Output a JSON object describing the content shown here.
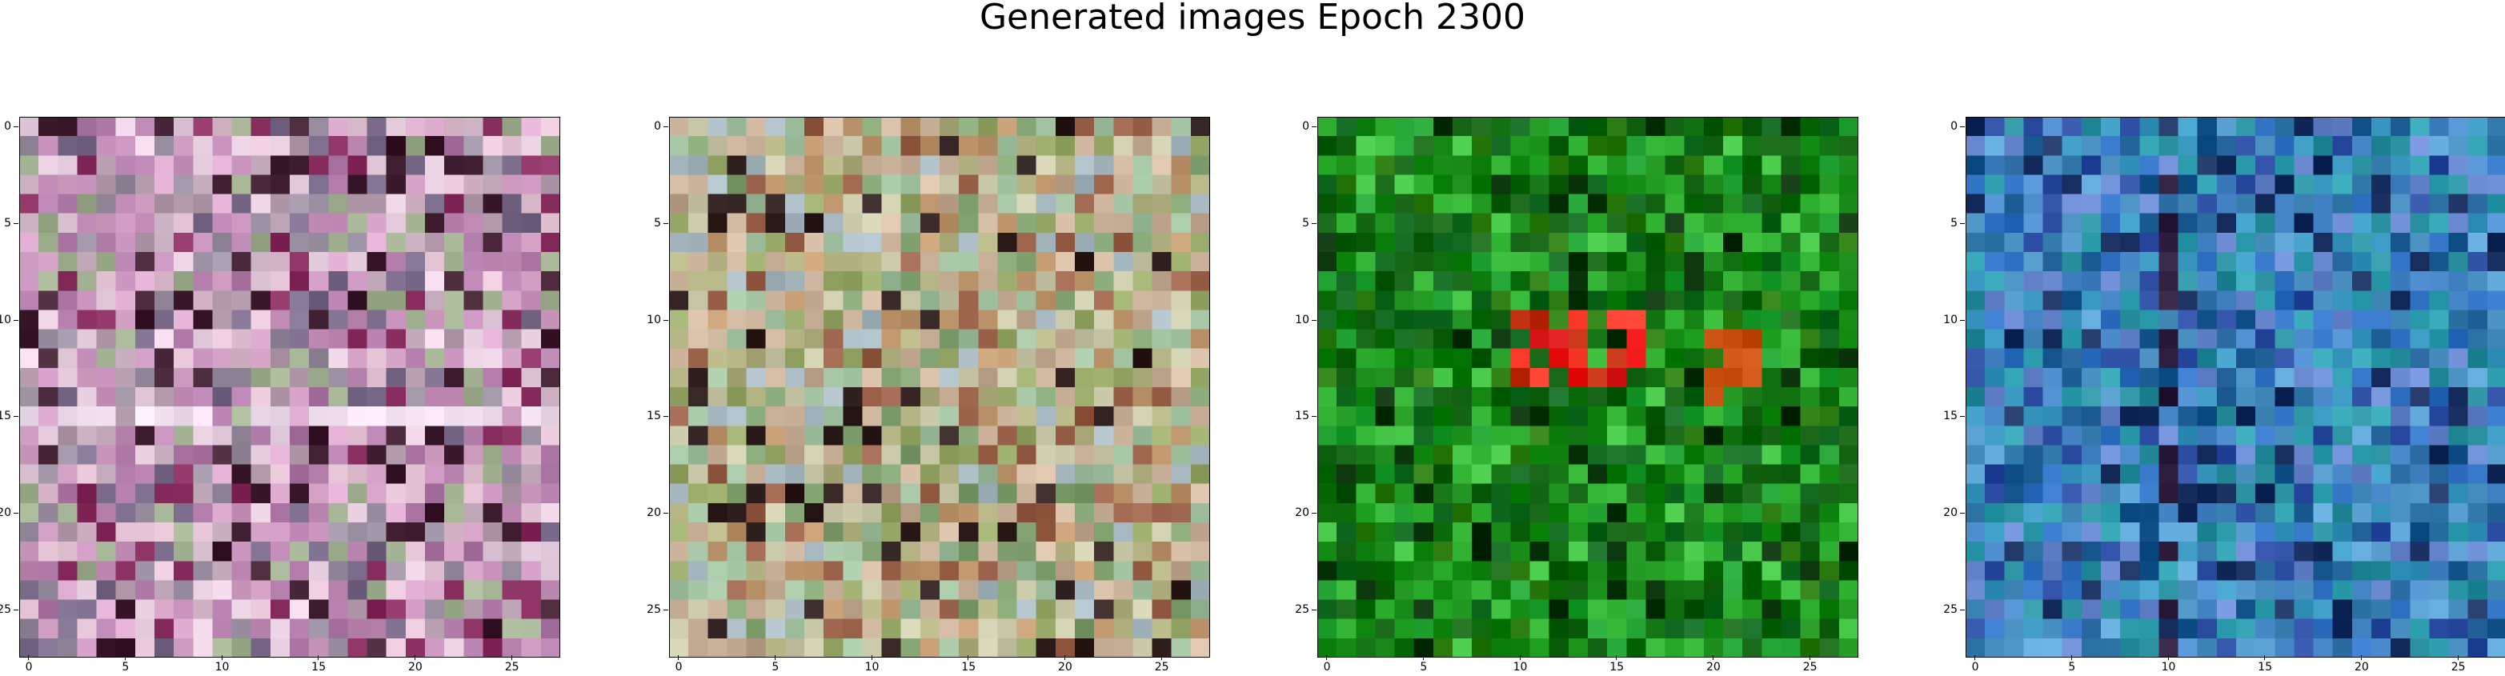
{
  "figure": {
    "title": "Generated images Epoch 2300"
  },
  "grid_size": 28,
  "ticks": [
    "0",
    "5",
    "10",
    "15",
    "20",
    "25"
  ],
  "panels": [
    {
      "dominant_tone": "pink-mauve",
      "base_color": "#c39ab8"
    },
    {
      "dominant_tone": "olive-tan",
      "base_color": "#a8a878"
    },
    {
      "dominant_tone": "green",
      "base_color": "#1a8a1a"
    },
    {
      "dominant_tone": "blue-teal",
      "base_color": "#3a80b0"
    }
  ]
}
